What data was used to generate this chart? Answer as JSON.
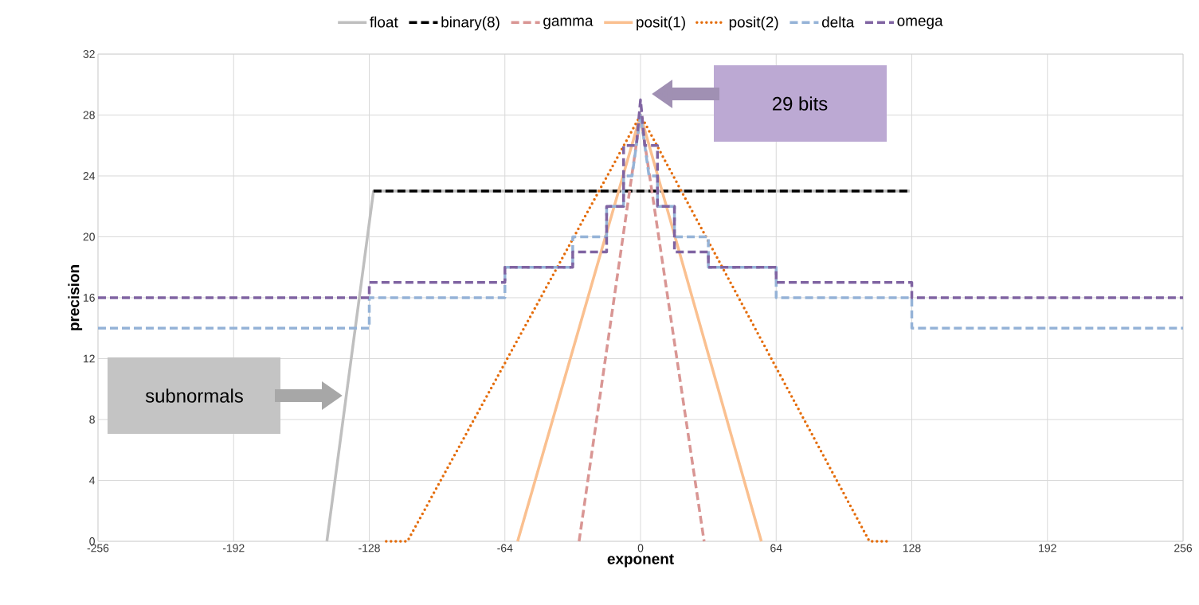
{
  "chart_data": {
    "type": "line",
    "xlabel": "exponent",
    "ylabel": "precision",
    "xlim": [
      -256,
      256
    ],
    "ylim": [
      0,
      32
    ],
    "xticks": [
      -256,
      -192,
      -128,
      -64,
      0,
      64,
      128,
      192,
      256
    ],
    "yticks": [
      0,
      4,
      8,
      12,
      16,
      20,
      24,
      28,
      32
    ],
    "grid": true,
    "legend": "top",
    "series": [
      {
        "name": "float",
        "color": "#bfbfbf",
        "line_style": "solid",
        "x": [
          -148,
          -126,
          127
        ],
        "values": [
          0,
          23,
          23
        ]
      },
      {
        "name": "binary(8)",
        "color": "#000000",
        "line_style": "dashed",
        "x": [
          -126,
          127
        ],
        "values": [
          23,
          23
        ]
      },
      {
        "name": "gamma",
        "color": "#d99694",
        "line_style": "dashed",
        "x": [
          -29,
          0,
          30
        ],
        "values": [
          0,
          28,
          0
        ]
      },
      {
        "name": "posit(1)",
        "color": "#fac090",
        "line_style": "solid",
        "x": [
          -58,
          0,
          57
        ],
        "values": [
          0,
          28,
          0
        ]
      },
      {
        "name": "posit(2)",
        "color": "#e46c0a",
        "line_style": "dotted",
        "x": [
          -120,
          -110,
          0,
          108,
          118
        ],
        "values": [
          0,
          0,
          28,
          0,
          0
        ]
      },
      {
        "name": "delta",
        "color": "#95b3d7",
        "line_style": "dashed",
        "x": [
          -256,
          -128,
          -128,
          -64,
          -64,
          -32,
          -32,
          -16,
          -16,
          -8,
          -8,
          -4,
          0,
          4,
          8,
          8,
          16,
          16,
          32,
          32,
          64,
          64,
          128,
          128,
          256
        ],
        "values": [
          14,
          14,
          16,
          16,
          18,
          18,
          20,
          20,
          22,
          22,
          24,
          24,
          28,
          24,
          24,
          22,
          22,
          20,
          20,
          18,
          18,
          16,
          16,
          14,
          14
        ]
      },
      {
        "name": "omega",
        "color": "#8064a2",
        "line_style": "dashed",
        "x": [
          -256,
          -128,
          -128,
          -64,
          -64,
          -32,
          -32,
          -16,
          -16,
          -8,
          -8,
          -2,
          0,
          2,
          8,
          8,
          16,
          16,
          32,
          32,
          64,
          64,
          128,
          128,
          256
        ],
        "values": [
          16,
          16,
          17,
          17,
          18,
          18,
          19,
          19,
          22,
          22,
          26,
          26,
          29,
          26,
          26,
          22,
          22,
          19,
          19,
          18,
          18,
          17,
          17,
          16,
          16
        ]
      }
    ],
    "annotations": [
      "29 bits",
      "subnormals"
    ]
  }
}
